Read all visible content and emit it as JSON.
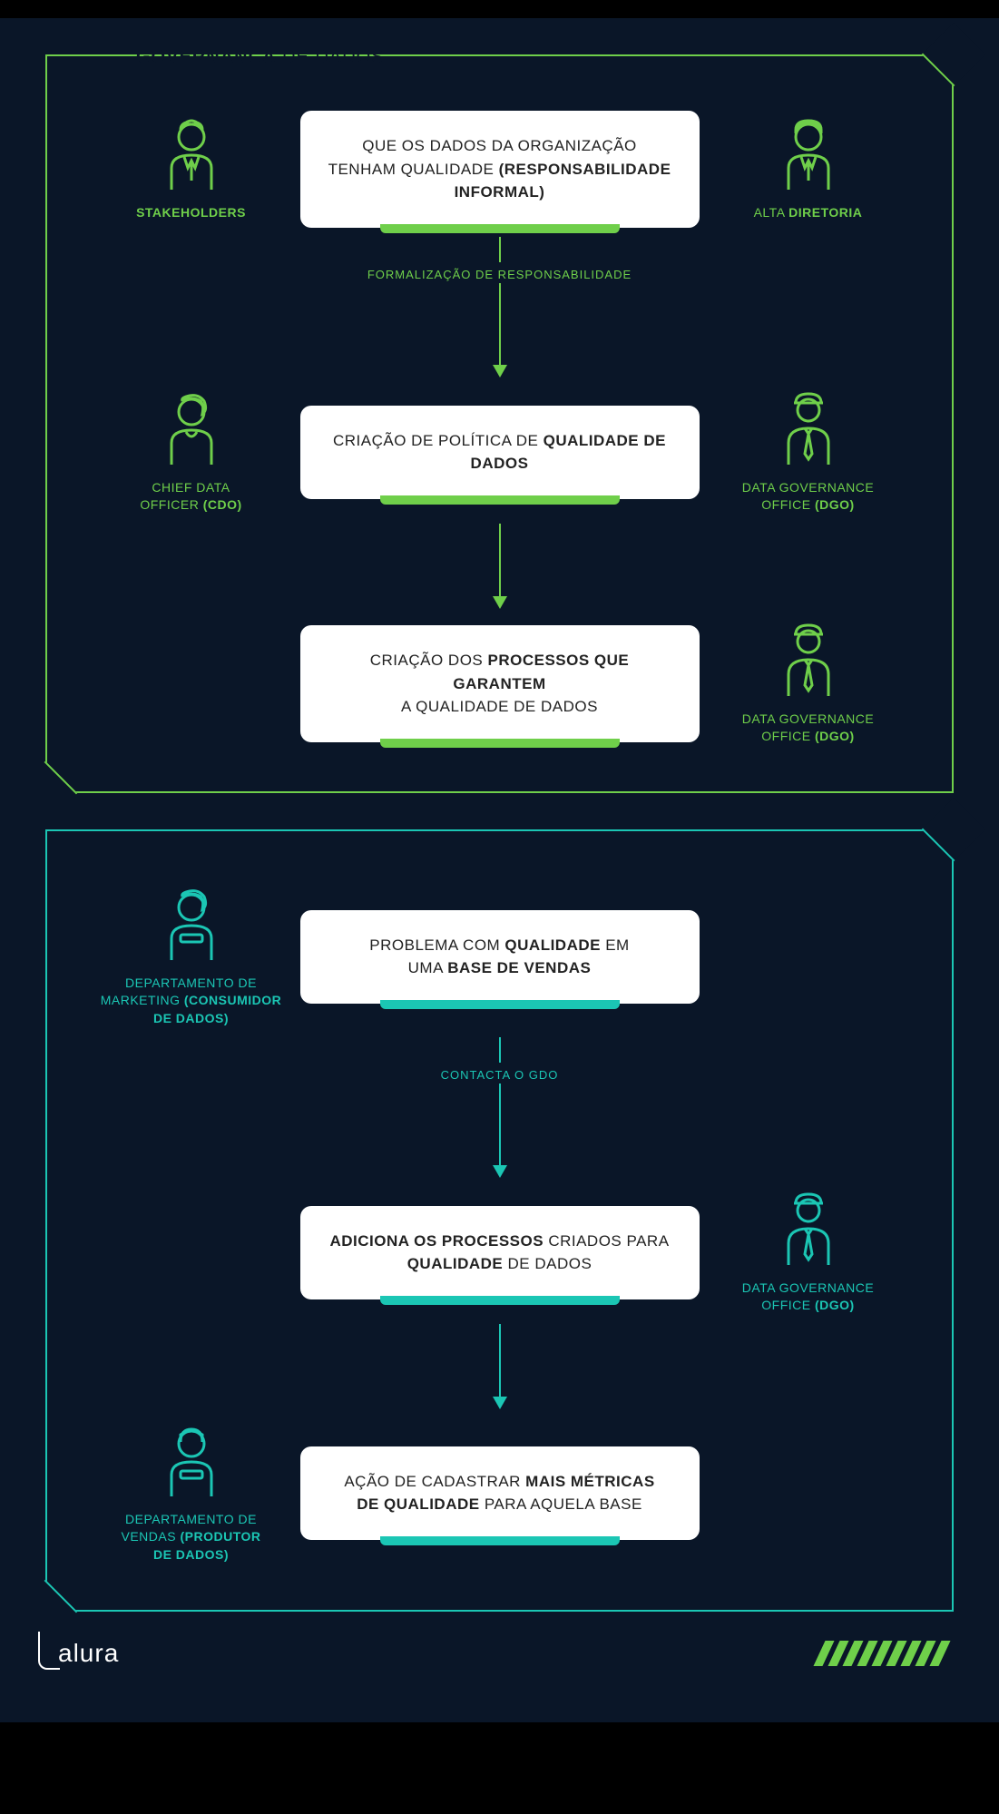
{
  "colors": {
    "bg": "#0a1628",
    "green": "#6fcf4a",
    "teal": "#1bc6b4",
    "card": "#ffffff",
    "cardText": "#222222"
  },
  "title": {
    "bold": "GOVERNANÇA",
    "rest": "DE DADOS"
  },
  "panel1": {
    "accent": "green",
    "rows": [
      {
        "left": {
          "icon": "stakeholder",
          "label_html": "<b>STAKEHOLDERS</b>"
        },
        "card_html": "QUE OS DADOS DA ORGANIZAÇÃO TENHAM QUALIDADE <b>(RESPONSABILIDADE INFORMAL)</b>",
        "right": {
          "icon": "director",
          "label_html": "ALTA <b>DIRETORIA</b>"
        }
      },
      {
        "connector": {
          "label": "FORMALIZAÇÃO DE RESPONSABILIDADE"
        }
      },
      {
        "left": {
          "icon": "cdo",
          "label_html": "CHIEF DATA<br>OFFICER <b>(CDO)</b>"
        },
        "card_html": "CRIAÇÃO DE POLÍTICA DE <b>QUALIDADE DE DADOS</b>",
        "right": {
          "icon": "dgo",
          "label_html": "DATA GOVERNANCE<br>OFFICE <b>(DGO)</b>"
        }
      },
      {
        "connector": {}
      },
      {
        "left": null,
        "card_html": "CRIAÇÃO DOS <b>PROCESSOS QUE GARANTEM</b><br>A QUALIDADE DE DADOS",
        "right": {
          "icon": "dgo",
          "label_html": "DATA GOVERNANCE<br>OFFICE <b>(DGO)</b>"
        }
      }
    ]
  },
  "panel2": {
    "accent": "teal",
    "rows": [
      {
        "left": {
          "icon": "marketing",
          "label_html": "DEPARTAMENTO DE<br>MARKETING <b>(CONSUMIDOR<br>DE DADOS)</b>"
        },
        "card_html": "PROBLEMA COM <b>QUALIDADE</b> EM<br>UMA <b>BASE DE VENDAS</b>",
        "right": null
      },
      {
        "connector": {
          "label": "CONTACTA O GDO"
        }
      },
      {
        "left": null,
        "card_html": "<b>ADICIONA OS PROCESSOS</b> CRIADOS PARA<br><b>QUALIDADE</b> DE DADOS",
        "right": {
          "icon": "dgo",
          "label_html": "DATA GOVERNANCE<br>OFFICE <b>(DGO)</b>"
        }
      },
      {
        "connector": {}
      },
      {
        "left": {
          "icon": "sales",
          "label_html": "DEPARTAMENTO DE<br>VENDAS <b>(PRODUTOR<br>DE DADOS)</b>"
        },
        "card_html": "AÇÃO DE CADASTRAR <b>MAIS MÉTRICAS<br>DE QUALIDADE</b> PARA AQUELA BASE",
        "right": null
      }
    ]
  },
  "footer": {
    "logo": "alura",
    "stripe_count": 9
  }
}
